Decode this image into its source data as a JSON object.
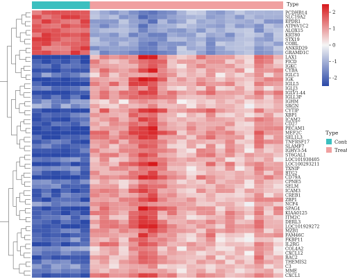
{
  "chart_data": {
    "type": "heatmap",
    "annotation": {
      "label": "Type",
      "groups": [
        {
          "name": "Control",
          "color": "#3bbfbf",
          "columns": 6
        },
        {
          "name": "Treat",
          "color": "#f0a0a0",
          "columns": 20
        }
      ]
    },
    "colorbar": {
      "ticks": [
        2,
        1,
        0,
        -1,
        -2
      ],
      "range": [
        -2.5,
        2.5
      ],
      "high_color": "#d7191c",
      "mid_color": "#f5f5f5",
      "low_color": "#2b49a8"
    },
    "legend": {
      "title": "Type",
      "entries": [
        {
          "label": "Control",
          "color": "#3bbfbf"
        },
        {
          "label": "Treat",
          "color": "#f0a0a0"
        }
      ]
    },
    "genes": [
      "PCDHB14",
      "SLC19A2",
      "EPDR1",
      "ATP6V1C2",
      "ALOX15",
      "KRT80",
      "STX19",
      "COBL",
      "ANKRD29",
      "GRAMD1C",
      "LAX1",
      "FICD",
      "IGKC",
      "CYBA",
      "IGLC1",
      "IGK",
      "IGLL5",
      "IGLJ3",
      "IGLV1-44",
      "IGLL3P",
      "IGHM",
      "SRGN",
      "CYTIP",
      "XBP1",
      "ICAM2",
      "CD27",
      "PECAM1",
      "MEF2C",
      "SEL1L3",
      "TNFRSF17",
      "SLAMF7",
      "IGHV3-54",
      "ST6GAL1",
      "LOC101930405",
      "LOC100293211",
      "TXNIP",
      "BTG2",
      "CD79A",
      "CPNE5",
      "SELM",
      "ICAM3",
      "CREB1",
      "ZBP1",
      "NCF4",
      "SPAG4",
      "KIAA0125",
      "ITM2C",
      "DERL3",
      "LOC101929272",
      "MZB1",
      "FAM46C",
      "FKBP11",
      "IL2RG",
      "COL4A2",
      "CXCL12",
      "RAC2",
      "THEMIS2",
      "C3",
      "MME",
      "CXCL1"
    ],
    "n_top_genes": 10,
    "n_columns": 26
  }
}
